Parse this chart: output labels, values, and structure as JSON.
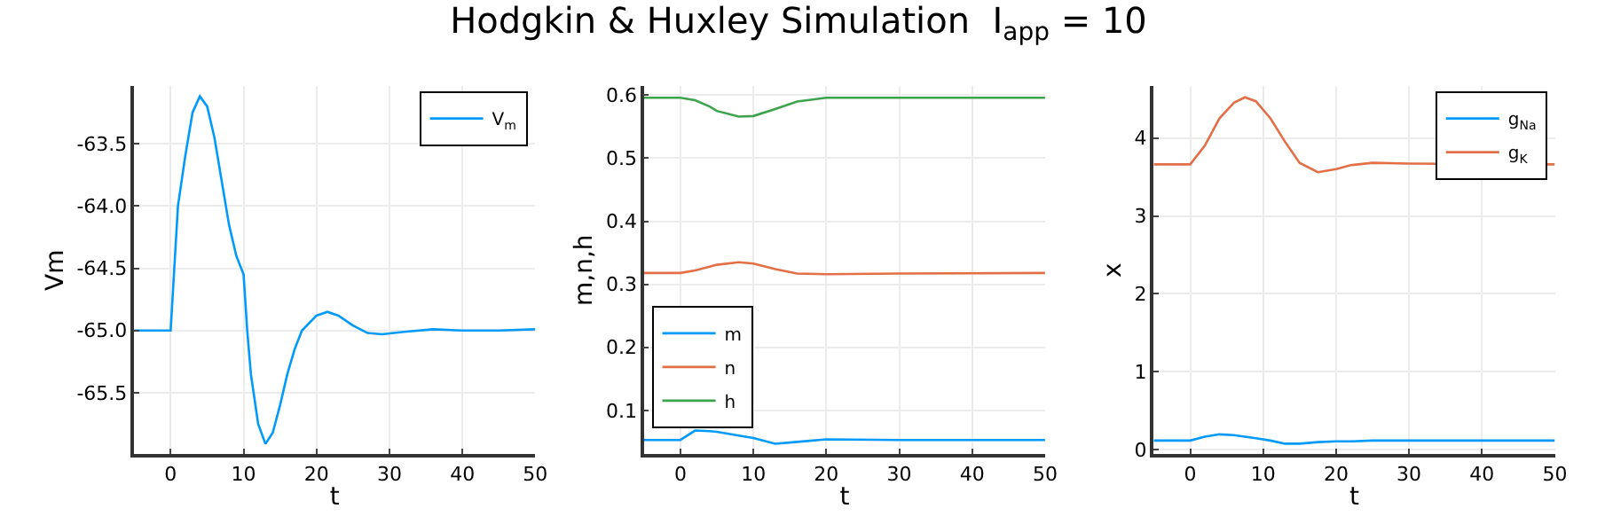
{
  "chart_data": [
    {
      "type": "line",
      "title": "Hodgkin & Huxley Simulation  I$_{app}$ = 10",
      "xlabel": "t",
      "ylabel": "Vm",
      "xlim": [
        -5,
        50
      ],
      "xticks": [
        0,
        10,
        20,
        30,
        40,
        50
      ],
      "ylim": [
        -65.99,
        -63.04
      ],
      "yticks": [
        -65.5,
        {
          "value": -65,
          "label": "-65.0"
        },
        -64.5,
        {
          "value": -64,
          "label": "-64.0"
        },
        -63.5
      ],
      "grid": true,
      "legend": "top right",
      "x": [
        -5,
        0,
        0.5,
        1,
        2,
        3,
        4,
        5,
        6,
        7,
        8,
        9,
        10,
        10.5,
        11,
        12,
        13,
        14,
        15,
        16,
        17,
        18,
        20,
        21.5,
        23,
        25,
        27,
        29,
        32,
        36,
        40,
        45,
        50
      ],
      "series": [
        {
          "name": "V$_{m}$",
          "color": "#009afa",
          "values": [
            -65.0,
            -65.0,
            -64.5,
            -64.0,
            -63.6,
            -63.25,
            -63.12,
            -63.2,
            -63.45,
            -63.8,
            -64.15,
            -64.4,
            -64.55,
            -65.0,
            -65.35,
            -65.75,
            -65.91,
            -65.82,
            -65.6,
            -65.35,
            -65.15,
            -65.0,
            -64.88,
            -64.85,
            -64.88,
            -64.96,
            -65.02,
            -65.03,
            -65.01,
            -64.99,
            -65.0,
            -65.0,
            -64.99
          ]
        }
      ]
    },
    {
      "type": "line",
      "xlabel": "t",
      "ylabel": "m,n,h",
      "xlim": [
        -5,
        50
      ],
      "xticks": [
        0,
        10,
        20,
        30,
        40,
        50
      ],
      "ylim": [
        0.031,
        0.614
      ],
      "yticks": [
        0.1,
        0.2,
        0.3,
        0.4,
        0.5,
        0.6
      ],
      "grid": true,
      "legend": "bottom left",
      "x": [
        -5,
        0,
        2,
        4,
        5,
        8,
        10,
        13,
        16,
        20,
        30,
        50
      ],
      "series": [
        {
          "name": "m",
          "color": "#009afa",
          "values": [
            0.053,
            0.053,
            0.068,
            0.067,
            0.066,
            0.06,
            0.056,
            0.047,
            0.05,
            0.054,
            0.053,
            0.053
          ]
        },
        {
          "name": "n",
          "color": "#e26f46",
          "values": [
            0.318,
            0.318,
            0.322,
            0.328,
            0.331,
            0.335,
            0.333,
            0.324,
            0.317,
            0.316,
            0.317,
            0.318
          ]
        },
        {
          "name": "h",
          "color": "#3da44d",
          "values": [
            0.596,
            0.596,
            0.592,
            0.582,
            0.575,
            0.566,
            0.567,
            0.578,
            0.59,
            0.596,
            0.596,
            0.596
          ]
        }
      ]
    },
    {
      "type": "line",
      "xlabel": "t",
      "ylabel": "x",
      "xlim": [
        -5,
        50
      ],
      "xticks": [
        0,
        10,
        20,
        30,
        40,
        50
      ],
      "ylim": [
        -0.05,
        4.66
      ],
      "yticks": [
        0,
        1,
        2,
        3,
        4
      ],
      "grid": true,
      "legend": "top right",
      "x": [
        -5,
        0,
        2,
        4,
        6,
        7.5,
        9,
        11,
        13,
        15,
        17.5,
        20,
        22,
        25,
        30,
        50
      ],
      "series": [
        {
          "name": "g$_{Na}$",
          "color": "#009afa",
          "values": [
            0.12,
            0.12,
            0.17,
            0.2,
            0.19,
            0.17,
            0.15,
            0.12,
            0.08,
            0.08,
            0.1,
            0.11,
            0.11,
            0.12,
            0.12,
            0.12
          ]
        },
        {
          "name": "g$_{K}$",
          "color": "#e26f46",
          "values": [
            3.66,
            3.66,
            3.9,
            4.25,
            4.45,
            4.52,
            4.47,
            4.25,
            3.95,
            3.68,
            3.56,
            3.6,
            3.65,
            3.68,
            3.67,
            3.66
          ]
        }
      ]
    }
  ]
}
